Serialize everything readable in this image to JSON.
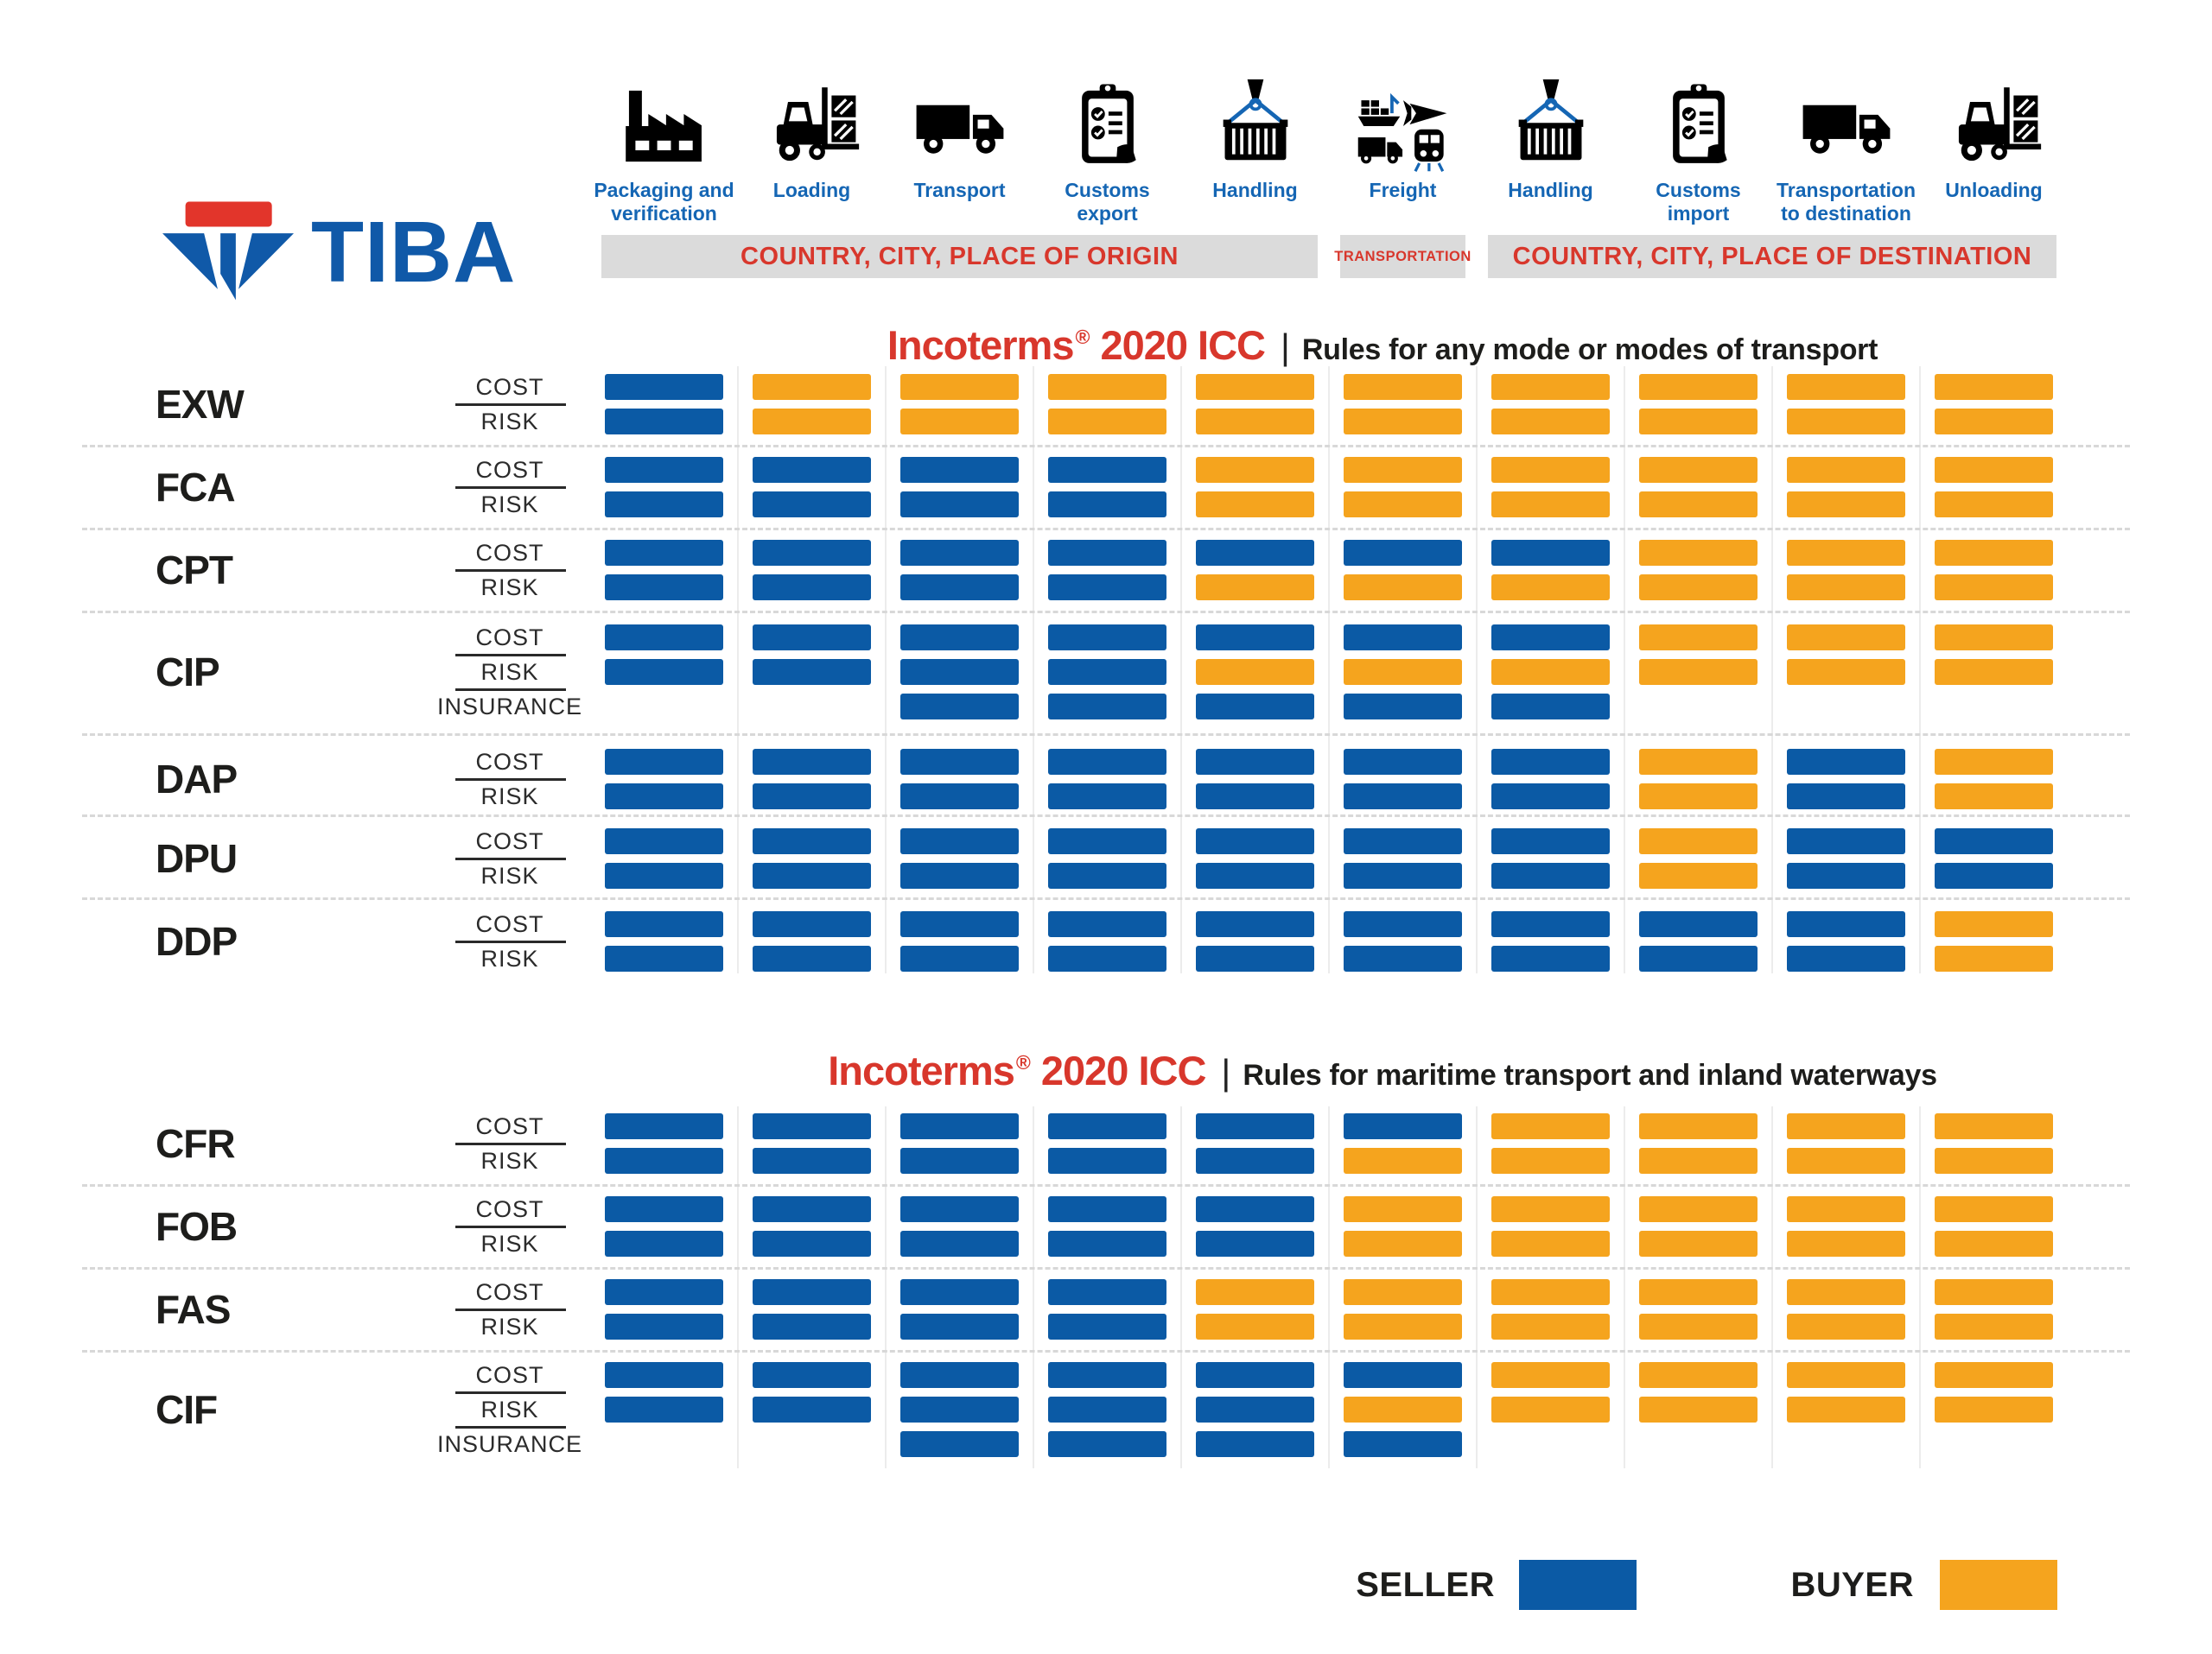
{
  "brand": {
    "name": "TIBA"
  },
  "stages": [
    {
      "icon": "factory-icon",
      "label": "Packaging and\nverification"
    },
    {
      "icon": "forklift-icon",
      "label": "Loading"
    },
    {
      "icon": "truck-icon",
      "label": "Transport"
    },
    {
      "icon": "clipboard-icon",
      "label": "Customs\nexport"
    },
    {
      "icon": "crane-container-icon",
      "label": "Handling"
    },
    {
      "icon": "freight-modes-icon",
      "label": "Freight"
    },
    {
      "icon": "crane-container-icon",
      "label": "Handling"
    },
    {
      "icon": "clipboard-icon",
      "label": "Customs\nimport"
    },
    {
      "icon": "truck-icon",
      "label": "Transportation\nto destination"
    },
    {
      "icon": "forklift-icon",
      "label": "Unloading"
    }
  ],
  "bands": [
    {
      "label": "COUNTRY, CITY, PLACE OF ORIGIN",
      "col_start": 1,
      "col_end": 5,
      "size": "large"
    },
    {
      "label": "TRANSPORTATION",
      "col_start": 6,
      "col_end": 6,
      "size": "small"
    },
    {
      "label": "COUNTRY, CITY, PLACE OF DESTINATION",
      "col_start": 7,
      "col_end": 10,
      "size": "large"
    }
  ],
  "chart_data": {
    "type": "heatmap",
    "columns": [
      "Packaging and verification",
      "Loading",
      "Transport",
      "Customs export",
      "Handling",
      "Freight",
      "Handling",
      "Customs import",
      "Transportation to destination",
      "Unloading"
    ],
    "value_legend": {
      "S": "SELLER",
      "B": "BUYER"
    },
    "colors": {
      "seller": "#0B5AA5",
      "buyer": "#F5A41E"
    },
    "sections": [
      {
        "title": {
          "brand": "Incoterms",
          "reg": "®",
          "year": "2020 ICC",
          "divider": "|",
          "subtitle": "Rules for any mode or modes of transport"
        },
        "rows": [
          {
            "code": "EXW",
            "tracks": [
              {
                "label": "COST",
                "cells": [
                  "S",
                  "B",
                  "B",
                  "B",
                  "B",
                  "B",
                  "B",
                  "B",
                  "B",
                  "B"
                ]
              },
              {
                "label": "RISK",
                "cells": [
                  "S",
                  "B",
                  "B",
                  "B",
                  "B",
                  "B",
                  "B",
                  "B",
                  "B",
                  "B"
                ]
              }
            ]
          },
          {
            "code": "FCA",
            "tracks": [
              {
                "label": "COST",
                "cells": [
                  "S",
                  "S",
                  "S",
                  "S",
                  "B",
                  "B",
                  "B",
                  "B",
                  "B",
                  "B"
                ]
              },
              {
                "label": "RISK",
                "cells": [
                  "S",
                  "S",
                  "S",
                  "S",
                  "B",
                  "B",
                  "B",
                  "B",
                  "B",
                  "B"
                ]
              }
            ]
          },
          {
            "code": "CPT",
            "tracks": [
              {
                "label": "COST",
                "cells": [
                  "S",
                  "S",
                  "S",
                  "S",
                  "S",
                  "S",
                  "S",
                  "B",
                  "B",
                  "B"
                ]
              },
              {
                "label": "RISK",
                "cells": [
                  "S",
                  "S",
                  "S",
                  "S",
                  "B",
                  "B",
                  "B",
                  "B",
                  "B",
                  "B"
                ]
              }
            ]
          },
          {
            "code": "CIP",
            "tracks": [
              {
                "label": "COST",
                "cells": [
                  "S",
                  "S",
                  "S",
                  "S",
                  "S",
                  "S",
                  "S",
                  "B",
                  "B",
                  "B"
                ]
              },
              {
                "label": "RISK",
                "cells": [
                  "S",
                  "S",
                  "S",
                  "S",
                  "B",
                  "B",
                  "B",
                  "B",
                  "B",
                  "B"
                ]
              },
              {
                "label": "INSURANCE",
                "cells": [
                  null,
                  null,
                  "S",
                  "S",
                  "S",
                  "S",
                  "S",
                  null,
                  null,
                  null
                ]
              }
            ]
          },
          {
            "code": "DAP",
            "tracks": [
              {
                "label": "COST",
                "cells": [
                  "S",
                  "S",
                  "S",
                  "S",
                  "S",
                  "S",
                  "S",
                  "B",
                  "S",
                  "B"
                ]
              },
              {
                "label": "RISK",
                "cells": [
                  "S",
                  "S",
                  "S",
                  "S",
                  "S",
                  "S",
                  "S",
                  "B",
                  "S",
                  "B"
                ]
              }
            ]
          },
          {
            "code": "DPU",
            "tracks": [
              {
                "label": "COST",
                "cells": [
                  "S",
                  "S",
                  "S",
                  "S",
                  "S",
                  "S",
                  "S",
                  "B",
                  "S",
                  "S"
                ]
              },
              {
                "label": "RISK",
                "cells": [
                  "S",
                  "S",
                  "S",
                  "S",
                  "S",
                  "S",
                  "S",
                  "B",
                  "S",
                  "S"
                ]
              }
            ]
          },
          {
            "code": "DDP",
            "tracks": [
              {
                "label": "COST",
                "cells": [
                  "S",
                  "S",
                  "S",
                  "S",
                  "S",
                  "S",
                  "S",
                  "S",
                  "S",
                  "B"
                ]
              },
              {
                "label": "RISK",
                "cells": [
                  "S",
                  "S",
                  "S",
                  "S",
                  "S",
                  "S",
                  "S",
                  "S",
                  "S",
                  "B"
                ]
              }
            ]
          }
        ]
      },
      {
        "title": {
          "brand": "Incoterms",
          "reg": "®",
          "year": "2020 ICC",
          "divider": "|",
          "subtitle": "Rules for maritime transport and inland waterways"
        },
        "rows": [
          {
            "code": "CFR",
            "tracks": [
              {
                "label": "COST",
                "cells": [
                  "S",
                  "S",
                  "S",
                  "S",
                  "S",
                  "S",
                  "B",
                  "B",
                  "B",
                  "B"
                ]
              },
              {
                "label": "RISK",
                "cells": [
                  "S",
                  "S",
                  "S",
                  "S",
                  "S",
                  "B",
                  "B",
                  "B",
                  "B",
                  "B"
                ]
              }
            ]
          },
          {
            "code": "FOB",
            "tracks": [
              {
                "label": "COST",
                "cells": [
                  "S",
                  "S",
                  "S",
                  "S",
                  "S",
                  "B",
                  "B",
                  "B",
                  "B",
                  "B"
                ]
              },
              {
                "label": "RISK",
                "cells": [
                  "S",
                  "S",
                  "S",
                  "S",
                  "S",
                  "B",
                  "B",
                  "B",
                  "B",
                  "B"
                ]
              }
            ]
          },
          {
            "code": "FAS",
            "tracks": [
              {
                "label": "COST",
                "cells": [
                  "S",
                  "S",
                  "S",
                  "S",
                  "B",
                  "B",
                  "B",
                  "B",
                  "B",
                  "B"
                ]
              },
              {
                "label": "RISK",
                "cells": [
                  "S",
                  "S",
                  "S",
                  "S",
                  "B",
                  "B",
                  "B",
                  "B",
                  "B",
                  "B"
                ]
              }
            ]
          },
          {
            "code": "CIF",
            "tracks": [
              {
                "label": "COST",
                "cells": [
                  "S",
                  "S",
                  "S",
                  "S",
                  "S",
                  "S",
                  "B",
                  "B",
                  "B",
                  "B"
                ]
              },
              {
                "label": "RISK",
                "cells": [
                  "S",
                  "S",
                  "S",
                  "S",
                  "S",
                  "B",
                  "B",
                  "B",
                  "B",
                  "B"
                ]
              },
              {
                "label": "INSURANCE",
                "cells": [
                  null,
                  null,
                  "S",
                  "S",
                  "S",
                  "S",
                  null,
                  null,
                  null,
                  null
                ]
              }
            ]
          }
        ]
      }
    ]
  },
  "legend": {
    "seller_label": "SELLER",
    "buyer_label": "BUYER"
  },
  "colors": {
    "blue": "#1566B4",
    "logo_blue": "#1059A8",
    "red": "#D8372C",
    "logo_red": "#E2352B",
    "band_bg": "#DBDBDB",
    "dark": "#1d1d1b"
  }
}
